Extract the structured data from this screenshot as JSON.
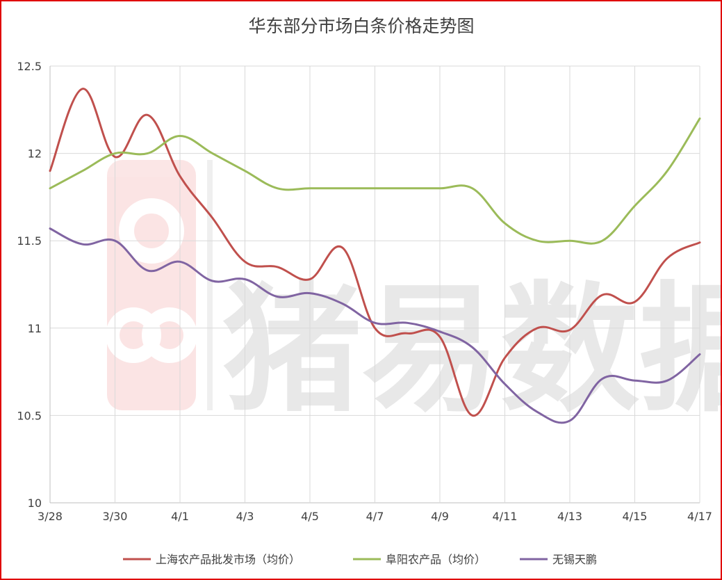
{
  "chart_data": {
    "type": "line",
    "title": "华东部分市场白条价格走势图",
    "xlabel": "",
    "ylabel": "",
    "ylim": [
      10,
      12.5
    ],
    "yticks": [
      "10",
      "10.5",
      "11",
      "11.5",
      "12",
      "12.5"
    ],
    "ytick_values": [
      10,
      10.5,
      11,
      11.5,
      12,
      12.5
    ],
    "x": [
      "3/28",
      "3/29",
      "3/30",
      "3/31",
      "4/1",
      "4/2",
      "4/3",
      "4/4",
      "4/5",
      "4/6",
      "4/7",
      "4/8",
      "4/9",
      "4/10",
      "4/11",
      "4/12",
      "4/13",
      "4/14",
      "4/15",
      "4/16",
      "4/17"
    ],
    "xtick_labels": [
      "3/28",
      "3/30",
      "4/1",
      "4/3",
      "4/5",
      "4/7",
      "4/9",
      "4/11",
      "4/13",
      "4/15",
      "4/17"
    ],
    "grid": true,
    "smooth": true,
    "legend_position": "bottom",
    "series": [
      {
        "name": "上海农产品批发市场（均价）",
        "color": "#c0504d",
        "values": [
          11.9,
          12.37,
          11.98,
          12.22,
          11.87,
          11.63,
          11.38,
          11.35,
          11.28,
          11.46,
          11.0,
          10.97,
          10.95,
          10.5,
          10.83,
          11.0,
          10.99,
          11.19,
          11.15,
          11.4,
          11.49
        ]
      },
      {
        "name": "阜阳农产品（均价）",
        "color": "#9bbb59",
        "values": [
          11.8,
          11.9,
          12.0,
          12.0,
          12.1,
          12.0,
          11.9,
          11.8,
          11.8,
          11.8,
          11.8,
          11.8,
          11.8,
          11.8,
          11.6,
          11.5,
          11.5,
          11.5,
          11.7,
          11.9,
          12.2
        ]
      },
      {
        "name": "无锡天鹏",
        "color": "#8064a2",
        "values": [
          11.57,
          11.48,
          11.5,
          11.33,
          11.38,
          11.27,
          11.28,
          11.18,
          11.2,
          11.14,
          11.03,
          11.03,
          10.98,
          10.89,
          10.68,
          10.52,
          10.47,
          10.71,
          10.7,
          10.7,
          10.85
        ]
      }
    ]
  },
  "watermark": {
    "text": "猪易数据"
  }
}
